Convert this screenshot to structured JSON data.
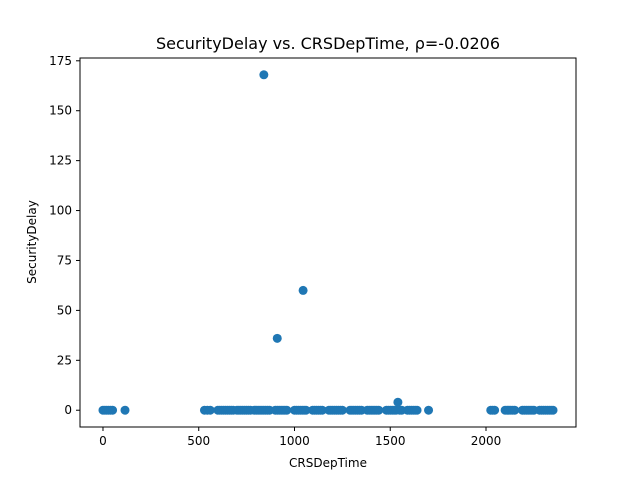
{
  "chart_data": {
    "type": "scatter",
    "title": "SecurityDelay vs. CRSDepTime, ρ=-0.0206",
    "xlabel": "CRSDepTime",
    "ylabel": "SecurityDelay",
    "xlim": [
      -120,
      2470
    ],
    "ylim": [
      -8.4,
      176.4
    ],
    "xticks": [
      0,
      500,
      1000,
      1500,
      2000
    ],
    "yticks": [
      0,
      25,
      50,
      75,
      100,
      125,
      150,
      175
    ],
    "grid": false,
    "marker_color": "#1f77b4",
    "points": [
      [
        0,
        0
      ],
      [
        10,
        0
      ],
      [
        20,
        0
      ],
      [
        30,
        0
      ],
      [
        40,
        0
      ],
      [
        50,
        0
      ],
      [
        115,
        0
      ],
      [
        530,
        0
      ],
      [
        545,
        0
      ],
      [
        560,
        0
      ],
      [
        600,
        0
      ],
      [
        610,
        0
      ],
      [
        620,
        0
      ],
      [
        630,
        0
      ],
      [
        640,
        0
      ],
      [
        650,
        0
      ],
      [
        660,
        0
      ],
      [
        670,
        0
      ],
      [
        680,
        0
      ],
      [
        700,
        0
      ],
      [
        710,
        0
      ],
      [
        720,
        0
      ],
      [
        730,
        0
      ],
      [
        740,
        0
      ],
      [
        750,
        0
      ],
      [
        760,
        0
      ],
      [
        770,
        0
      ],
      [
        790,
        0
      ],
      [
        800,
        0
      ],
      [
        810,
        0
      ],
      [
        820,
        0
      ],
      [
        830,
        0
      ],
      [
        840,
        0
      ],
      [
        850,
        0
      ],
      [
        860,
        0
      ],
      [
        870,
        0
      ],
      [
        900,
        0
      ],
      [
        910,
        0
      ],
      [
        920,
        0
      ],
      [
        930,
        0
      ],
      [
        940,
        0
      ],
      [
        950,
        0
      ],
      [
        960,
        0
      ],
      [
        1000,
        0
      ],
      [
        1010,
        0
      ],
      [
        1020,
        0
      ],
      [
        1030,
        0
      ],
      [
        1040,
        0
      ],
      [
        1050,
        0
      ],
      [
        1060,
        0
      ],
      [
        1095,
        0
      ],
      [
        1105,
        0
      ],
      [
        1115,
        0
      ],
      [
        1125,
        0
      ],
      [
        1135,
        0
      ],
      [
        1145,
        0
      ],
      [
        1180,
        0
      ],
      [
        1190,
        0
      ],
      [
        1200,
        0
      ],
      [
        1210,
        0
      ],
      [
        1220,
        0
      ],
      [
        1230,
        0
      ],
      [
        1240,
        0
      ],
      [
        1250,
        0
      ],
      [
        1290,
        0
      ],
      [
        1300,
        0
      ],
      [
        1310,
        0
      ],
      [
        1320,
        0
      ],
      [
        1330,
        0
      ],
      [
        1340,
        0
      ],
      [
        1350,
        0
      ],
      [
        1380,
        0
      ],
      [
        1390,
        0
      ],
      [
        1400,
        0
      ],
      [
        1410,
        0
      ],
      [
        1420,
        0
      ],
      [
        1430,
        0
      ],
      [
        1440,
        0
      ],
      [
        1480,
        0
      ],
      [
        1490,
        0
      ],
      [
        1500,
        0
      ],
      [
        1510,
        0
      ],
      [
        1520,
        0
      ],
      [
        1530,
        0
      ],
      [
        1550,
        0
      ],
      [
        1560,
        0
      ],
      [
        1590,
        0
      ],
      [
        1600,
        0
      ],
      [
        1610,
        0
      ],
      [
        1620,
        0
      ],
      [
        1630,
        0
      ],
      [
        1640,
        0
      ],
      [
        1700,
        0
      ],
      [
        2025,
        0
      ],
      [
        2035,
        0
      ],
      [
        2045,
        0
      ],
      [
        2100,
        0
      ],
      [
        2110,
        0
      ],
      [
        2120,
        0
      ],
      [
        2130,
        0
      ],
      [
        2140,
        0
      ],
      [
        2150,
        0
      ],
      [
        2190,
        0
      ],
      [
        2200,
        0
      ],
      [
        2210,
        0
      ],
      [
        2220,
        0
      ],
      [
        2230,
        0
      ],
      [
        2240,
        0
      ],
      [
        2250,
        0
      ],
      [
        2280,
        0
      ],
      [
        2290,
        0
      ],
      [
        2300,
        0
      ],
      [
        2310,
        0
      ],
      [
        2320,
        0
      ],
      [
        2330,
        0
      ],
      [
        2340,
        0
      ],
      [
        2350,
        0
      ],
      [
        1540,
        4
      ],
      [
        840,
        168
      ],
      [
        1045,
        60
      ],
      [
        910,
        36
      ]
    ]
  }
}
